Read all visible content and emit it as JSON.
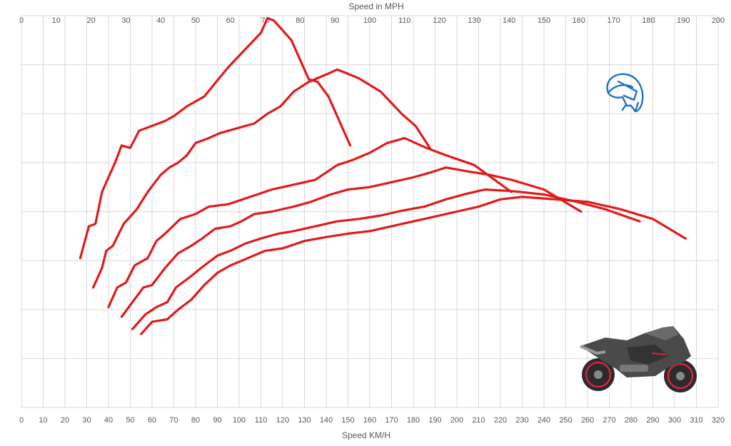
{
  "chart_data": {
    "type": "line",
    "xlabel": "Speed KM/H",
    "x2label": "Speed in MPH",
    "xlim": [
      0,
      320
    ],
    "x_ticks": [
      0,
      10,
      20,
      30,
      40,
      50,
      60,
      70,
      80,
      90,
      100,
      110,
      120,
      130,
      140,
      150,
      160,
      170,
      180,
      190,
      200,
      210,
      220,
      230,
      240,
      250,
      260,
      270,
      280,
      290,
      300,
      310,
      320
    ],
    "x2lim": [
      0,
      200
    ],
    "x2_ticks": [
      0,
      10,
      20,
      30,
      40,
      50,
      60,
      70,
      80,
      90,
      100,
      110,
      120,
      130,
      140,
      150,
      160,
      170,
      180,
      190,
      200
    ],
    "ylabel": "",
    "ylim": [
      0,
      8
    ],
    "y_ticks": [
      0,
      1,
      2,
      3,
      4,
      5,
      6,
      7,
      8
    ],
    "y_tick_labels_shown": false,
    "grid": true,
    "line_color": "#e11b1b",
    "series": [
      {
        "points": [
          [
            27,
            3.05
          ],
          [
            31,
            3.7
          ],
          [
            34,
            3.75
          ],
          [
            37,
            4.4
          ],
          [
            43,
            5.0
          ],
          [
            46,
            5.35
          ],
          [
            50,
            5.3
          ],
          [
            54,
            5.65
          ],
          [
            60,
            5.75
          ],
          [
            66,
            5.85
          ],
          [
            70,
            5.95
          ],
          [
            76,
            6.15
          ],
          [
            84,
            6.35
          ],
          [
            90,
            6.68
          ],
          [
            95,
            6.95
          ],
          [
            110,
            7.65
          ],
          [
            113,
            7.95
          ],
          [
            116,
            7.9
          ],
          [
            120,
            7.7
          ],
          [
            124,
            7.5
          ],
          [
            128,
            7.1
          ],
          [
            132,
            6.7
          ],
          [
            136,
            6.65
          ],
          [
            141,
            6.35
          ],
          [
            151,
            5.35
          ]
        ]
      },
      {
        "points": [
          [
            33,
            2.45
          ],
          [
            37,
            2.85
          ],
          [
            39,
            3.2
          ],
          [
            42,
            3.3
          ],
          [
            47,
            3.75
          ],
          [
            53,
            4.05
          ],
          [
            58,
            4.4
          ],
          [
            64,
            4.75
          ],
          [
            68,
            4.9
          ],
          [
            72,
            5.0
          ],
          [
            76,
            5.15
          ],
          [
            80,
            5.4
          ],
          [
            86,
            5.5
          ],
          [
            91,
            5.6
          ],
          [
            99,
            5.7
          ],
          [
            107,
            5.8
          ],
          [
            113,
            6.0
          ],
          [
            119,
            6.15
          ],
          [
            125,
            6.45
          ],
          [
            132,
            6.65
          ],
          [
            140,
            6.8
          ],
          [
            145,
            6.9
          ],
          [
            148,
            6.85
          ],
          [
            155,
            6.72
          ],
          [
            165,
            6.45
          ],
          [
            175,
            5.98
          ],
          [
            181,
            5.75
          ],
          [
            188,
            5.27
          ]
        ]
      },
      {
        "points": [
          [
            40,
            2.05
          ],
          [
            44,
            2.45
          ],
          [
            48,
            2.55
          ],
          [
            52,
            2.9
          ],
          [
            58,
            3.05
          ],
          [
            62,
            3.4
          ],
          [
            66,
            3.55
          ],
          [
            73,
            3.85
          ],
          [
            80,
            3.95
          ],
          [
            86,
            4.1
          ],
          [
            95,
            4.15
          ],
          [
            105,
            4.3
          ],
          [
            115,
            4.45
          ],
          [
            125,
            4.55
          ],
          [
            135,
            4.65
          ],
          [
            145,
            4.95
          ],
          [
            152,
            5.05
          ],
          [
            160,
            5.2
          ],
          [
            168,
            5.4
          ],
          [
            176,
            5.5
          ],
          [
            186,
            5.3
          ],
          [
            195,
            5.15
          ],
          [
            208,
            4.95
          ],
          [
            225,
            4.4
          ]
        ]
      },
      {
        "points": [
          [
            46,
            1.85
          ],
          [
            51,
            2.15
          ],
          [
            56,
            2.45
          ],
          [
            60,
            2.5
          ],
          [
            66,
            2.85
          ],
          [
            72,
            3.15
          ],
          [
            78,
            3.3
          ],
          [
            83,
            3.45
          ],
          [
            89,
            3.65
          ],
          [
            96,
            3.7
          ],
          [
            101,
            3.8
          ],
          [
            107,
            3.95
          ],
          [
            115,
            4.0
          ],
          [
            125,
            4.1
          ],
          [
            133,
            4.2
          ],
          [
            142,
            4.35
          ],
          [
            150,
            4.45
          ],
          [
            160,
            4.5
          ],
          [
            170,
            4.6
          ],
          [
            180,
            4.7
          ],
          [
            188,
            4.8
          ],
          [
            195,
            4.9
          ],
          [
            205,
            4.82
          ],
          [
            215,
            4.75
          ],
          [
            225,
            4.65
          ],
          [
            240,
            4.45
          ],
          [
            257,
            4.0
          ]
        ]
      },
      {
        "points": [
          [
            51,
            1.6
          ],
          [
            57,
            1.9
          ],
          [
            62,
            2.05
          ],
          [
            67,
            2.15
          ],
          [
            71,
            2.45
          ],
          [
            77,
            2.65
          ],
          [
            84,
            2.9
          ],
          [
            90,
            3.1
          ],
          [
            96,
            3.2
          ],
          [
            103,
            3.35
          ],
          [
            110,
            3.45
          ],
          [
            118,
            3.55
          ],
          [
            125,
            3.6
          ],
          [
            135,
            3.7
          ],
          [
            145,
            3.8
          ],
          [
            155,
            3.85
          ],
          [
            165,
            3.92
          ],
          [
            175,
            4.02
          ],
          [
            185,
            4.1
          ],
          [
            195,
            4.25
          ],
          [
            205,
            4.37
          ],
          [
            213,
            4.45
          ],
          [
            225,
            4.42
          ],
          [
            240,
            4.35
          ],
          [
            255,
            4.2
          ],
          [
            268,
            4.05
          ],
          [
            284,
            3.8
          ]
        ]
      },
      {
        "points": [
          [
            55,
            1.5
          ],
          [
            60,
            1.75
          ],
          [
            67,
            1.8
          ],
          [
            72,
            2.0
          ],
          [
            78,
            2.2
          ],
          [
            84,
            2.5
          ],
          [
            90,
            2.75
          ],
          [
            96,
            2.9
          ],
          [
            104,
            3.05
          ],
          [
            112,
            3.2
          ],
          [
            120,
            3.25
          ],
          [
            130,
            3.4
          ],
          [
            140,
            3.48
          ],
          [
            150,
            3.55
          ],
          [
            160,
            3.6
          ],
          [
            170,
            3.7
          ],
          [
            180,
            3.8
          ],
          [
            190,
            3.9
          ],
          [
            200,
            4.0
          ],
          [
            210,
            4.1
          ],
          [
            220,
            4.25
          ],
          [
            230,
            4.3
          ],
          [
            245,
            4.25
          ],
          [
            260,
            4.2
          ],
          [
            275,
            4.05
          ],
          [
            290,
            3.85
          ],
          [
            305,
            3.45
          ]
        ]
      }
    ]
  },
  "icons": {
    "helmet": "helmet-icon",
    "helmet_color": "#1f6fc5",
    "motorcycle": "motorcycle-image"
  }
}
